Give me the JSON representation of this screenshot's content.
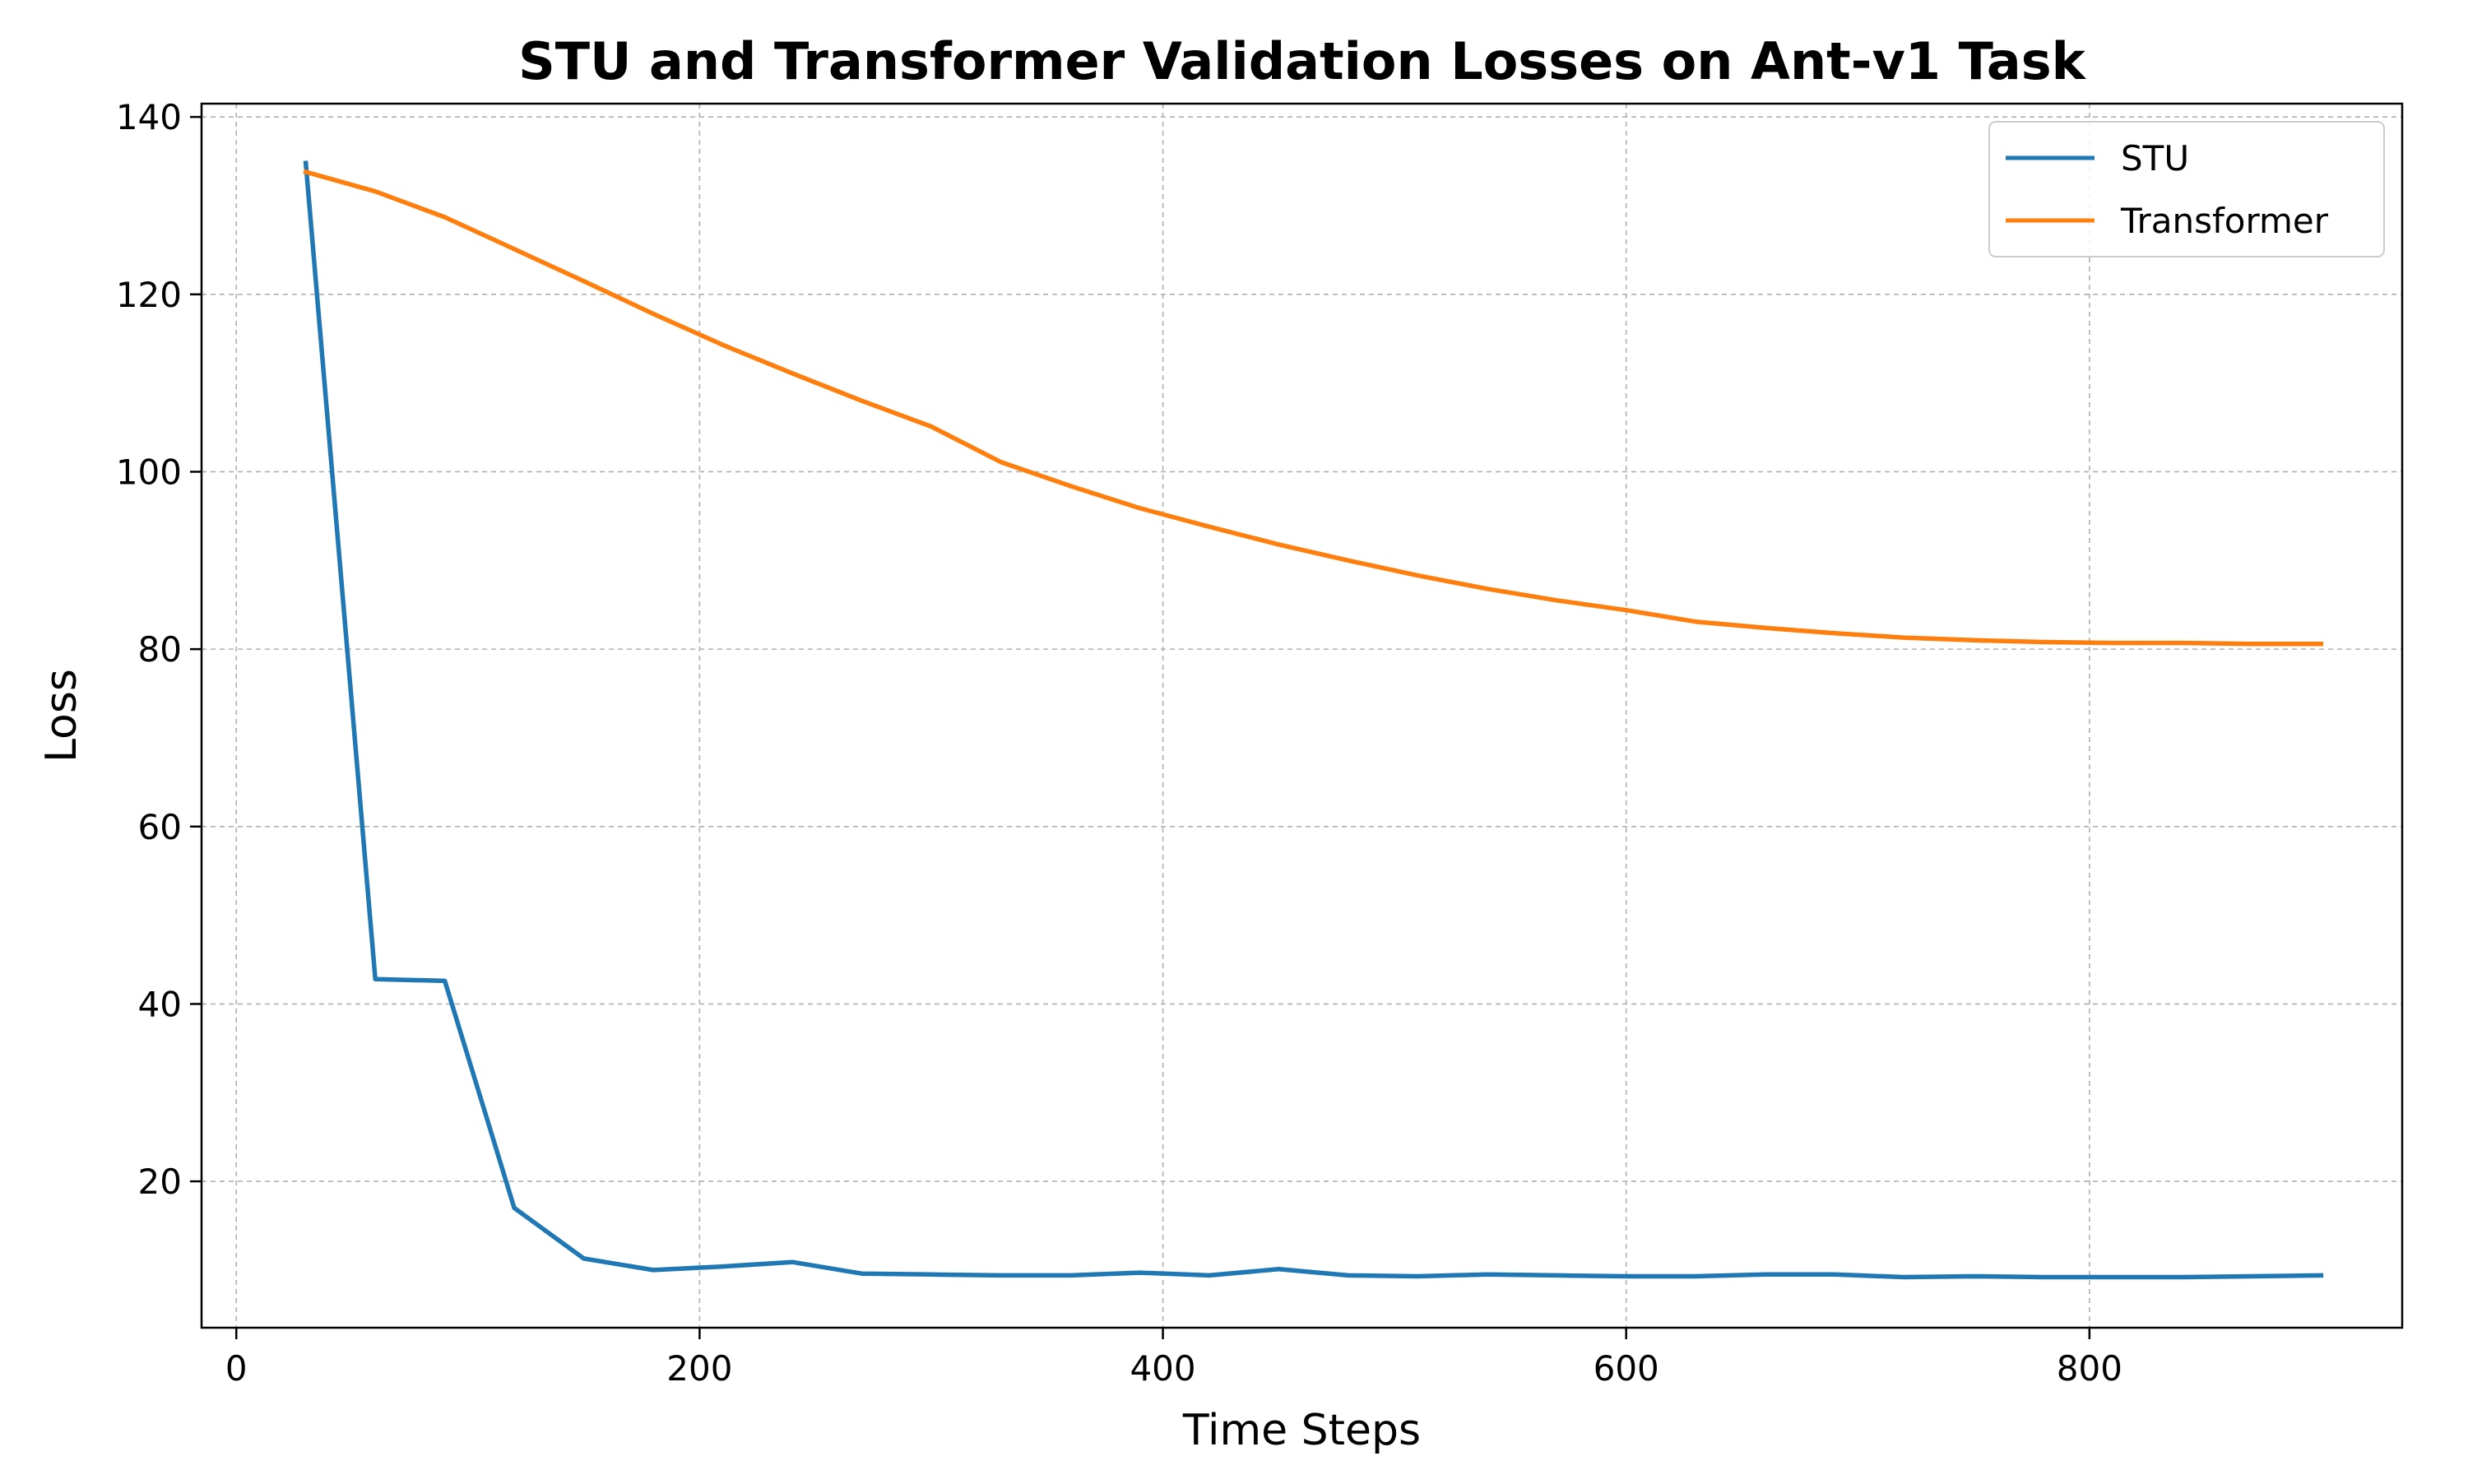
{
  "chart_data": {
    "type": "line",
    "title": "STU and Transformer Validation Losses on Ant-v1 Task",
    "xlabel": "Time Steps",
    "ylabel": "Loss",
    "xlim": [
      -15,
      935
    ],
    "ylim": [
      3.5,
      141.5
    ],
    "xticks": [
      0,
      200,
      400,
      600,
      800
    ],
    "yticks": [
      20,
      40,
      60,
      80,
      100,
      120,
      140
    ],
    "grid": true,
    "legend_position": "top-right",
    "series": [
      {
        "name": "STU",
        "color": "#1f77b4",
        "x": [
          30,
          60,
          90,
          120,
          150,
          180,
          210,
          240,
          270,
          300,
          330,
          360,
          390,
          420,
          450,
          480,
          510,
          540,
          570,
          600,
          630,
          660,
          690,
          720,
          750,
          780,
          810,
          840,
          870,
          900
        ],
        "y": [
          134.8,
          42.8,
          42.6,
          17.0,
          11.3,
          10.0,
          10.4,
          10.9,
          9.6,
          9.5,
          9.4,
          9.4,
          9.7,
          9.4,
          10.1,
          9.4,
          9.3,
          9.5,
          9.4,
          9.3,
          9.3,
          9.5,
          9.5,
          9.2,
          9.3,
          9.2,
          9.2,
          9.2,
          9.3,
          9.4
        ]
      },
      {
        "name": "Transformer",
        "color": "#ff7f0e",
        "x": [
          30,
          60,
          90,
          120,
          150,
          180,
          210,
          240,
          270,
          300,
          330,
          360,
          390,
          420,
          450,
          480,
          510,
          540,
          570,
          600,
          630,
          660,
          690,
          720,
          750,
          780,
          810,
          840,
          870,
          900
        ],
        "y": [
          133.8,
          131.6,
          128.7,
          125.1,
          121.5,
          117.8,
          114.3,
          111.1,
          108.0,
          105.1,
          101.1,
          98.4,
          95.9,
          93.8,
          91.8,
          90.0,
          88.3,
          86.8,
          85.5,
          84.4,
          83.1,
          82.4,
          81.8,
          81.3,
          81.0,
          80.8,
          80.7,
          80.7,
          80.6,
          80.6
        ]
      }
    ]
  }
}
